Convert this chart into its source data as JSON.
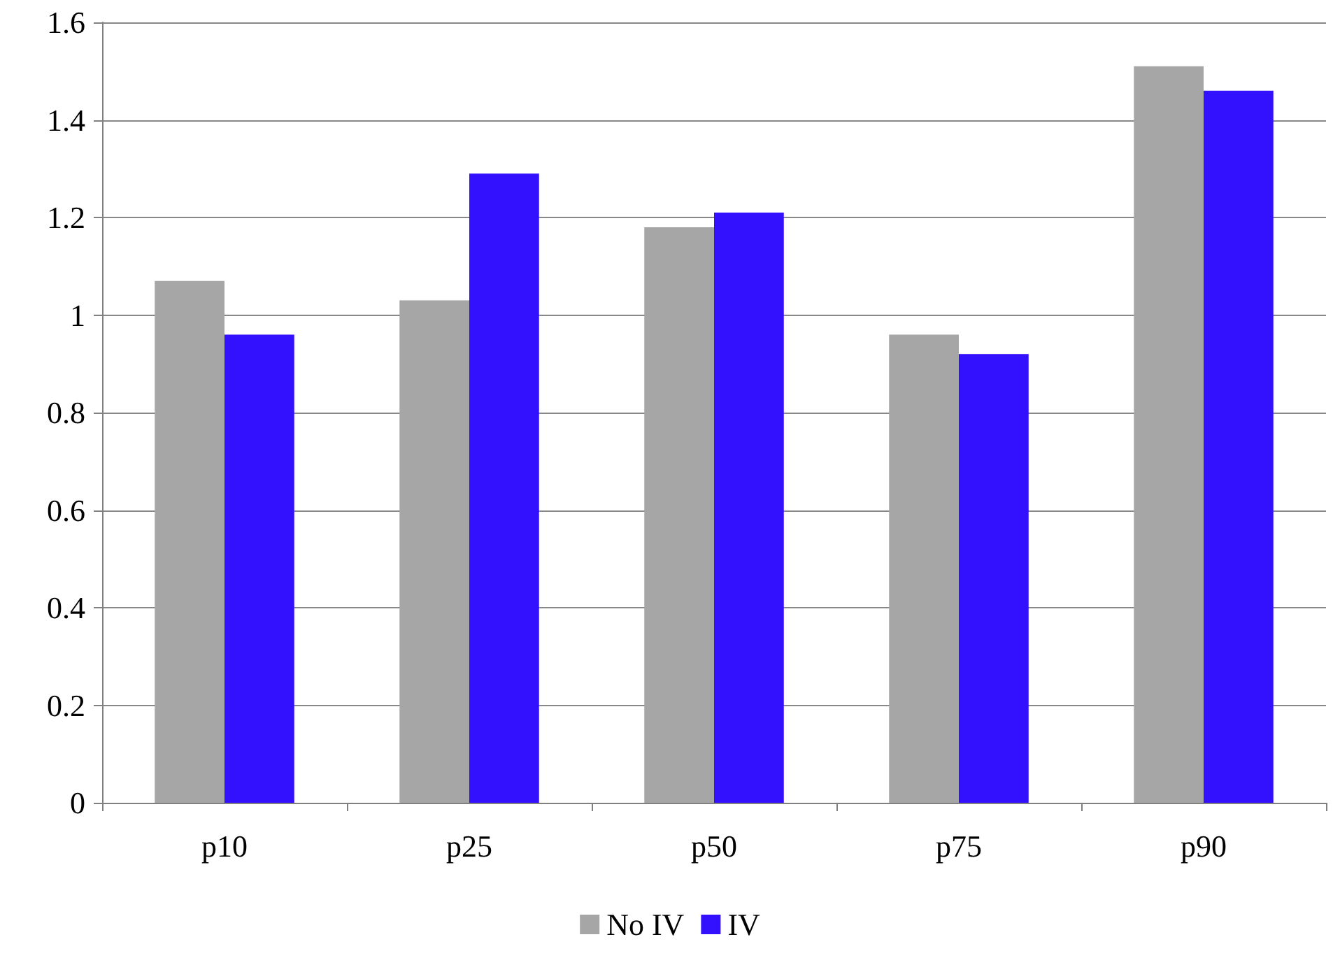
{
  "chart_data": {
    "type": "bar",
    "categories": [
      "p10",
      "p25",
      "p50",
      "p75",
      "p90"
    ],
    "series": [
      {
        "name": "No IV",
        "color": "#a6a6a6",
        "values": [
          1.07,
          1.03,
          1.18,
          0.96,
          1.51
        ]
      },
      {
        "name": "IV",
        "color": "#3311ff",
        "values": [
          0.96,
          1.29,
          1.21,
          0.92,
          1.46
        ]
      }
    ],
    "ylim": [
      0,
      1.6
    ],
    "yticks": [
      0,
      0.2,
      0.4,
      0.6,
      0.8,
      1,
      1.2,
      1.4,
      1.6
    ],
    "grid": "y",
    "legend": "bottom"
  }
}
